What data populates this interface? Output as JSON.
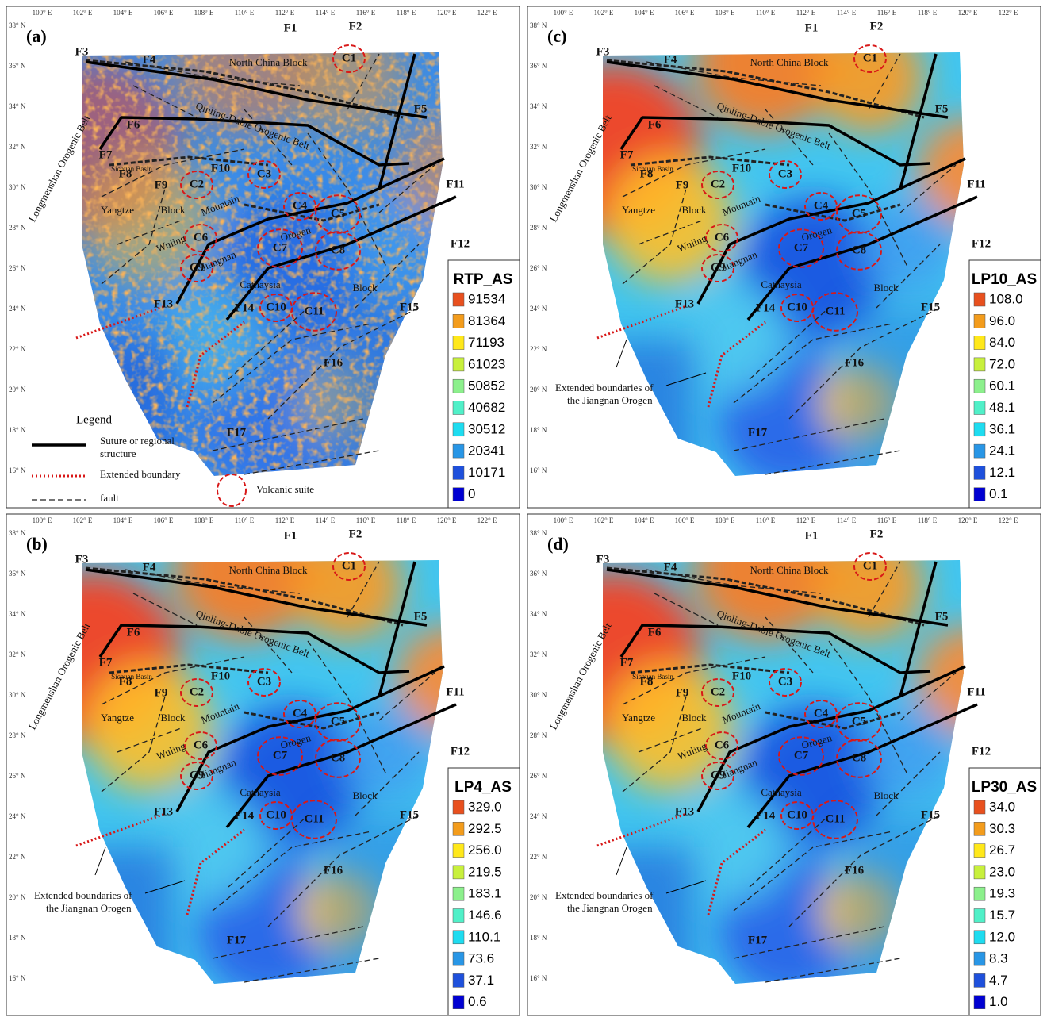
{
  "panels": [
    {
      "label": "(a)",
      "legend_title": "RTP_AS",
      "legend_values": [
        "91534",
        "81364",
        "71193",
        "61023",
        "50852",
        "40682",
        "30512",
        "20341",
        "10171",
        "0"
      ]
    },
    {
      "label": "(b)",
      "legend_title": "LP4_AS",
      "legend_values": [
        "329.0",
        "292.5",
        "256.0",
        "219.5",
        "183.1",
        "146.6",
        "110.1",
        "73.6",
        "37.1",
        "0.6"
      ]
    },
    {
      "label": "(c)",
      "legend_title": "LP10_AS",
      "legend_values": [
        "108.0",
        "96.0",
        "84.0",
        "72.0",
        "60.1",
        "48.1",
        "36.1",
        "24.1",
        "12.1",
        "0.1"
      ]
    },
    {
      "label": "(d)",
      "legend_title": "LP30_AS",
      "legend_values": [
        "34.0",
        "30.3",
        "26.7",
        "23.0",
        "19.3",
        "15.7",
        "12.0",
        "8.3",
        "4.7",
        "1.0"
      ]
    }
  ],
  "longitude_ticks": [
    "100° E",
    "102° E",
    "104° E",
    "106° E",
    "108° E",
    "110° E",
    "112° E",
    "114° E",
    "116° E",
    "118° E",
    "120° E",
    "122° E"
  ],
  "latitude_ticks": [
    "38° N",
    "36° N",
    "34° N",
    "32° N",
    "30° N",
    "28° N",
    "26° N",
    "24° N",
    "22° N",
    "20° N",
    "18° N",
    "16° N"
  ],
  "map_labels": [
    "F1",
    "F2",
    "F3",
    "F4",
    "F5",
    "F6",
    "F7",
    "F8",
    "F9",
    "F10",
    "F11",
    "F12",
    "F13",
    "F14",
    "F15",
    "F16",
    "F17",
    "C1",
    "C2",
    "C3",
    "C4",
    "C5",
    "C6",
    "C7",
    "C8",
    "C9",
    "C10",
    "C11",
    "North China Block",
    "Qinling-Dabie Orogenic Belt",
    "Yangtze",
    "Block",
    "Mountain",
    "Wuling",
    "Jiangnan",
    "Orogen",
    "Cathaysia",
    "Block",
    "Longmenshan Orogenic Belt",
    "Sichuan Basin"
  ],
  "annotation": [
    "Extended boundaries of",
    "the Jiangnan Orogen"
  ],
  "legend": {
    "title": "Legend",
    "suture": [
      "Suture or regional",
      "structure"
    ],
    "extended_boundary": "Extended boundary",
    "fault": "fault",
    "volcanic_suite": "Volcanic suite"
  }
}
